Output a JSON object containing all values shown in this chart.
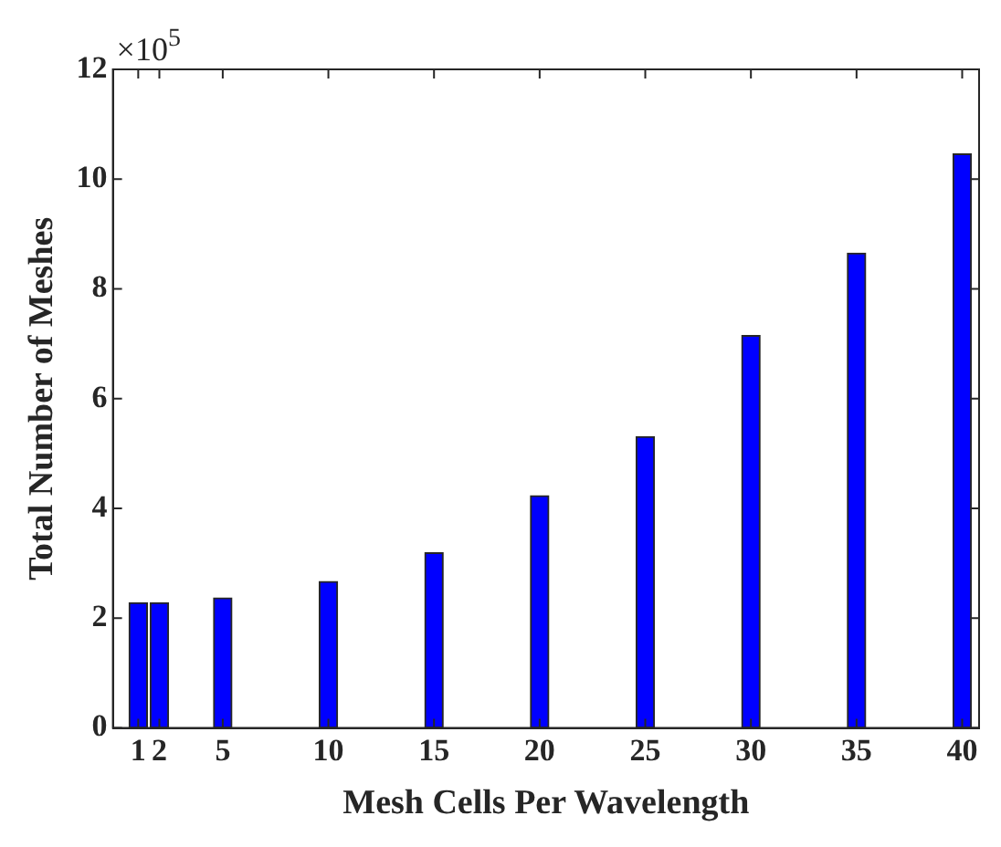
{
  "chart_data": {
    "type": "bar",
    "xlabel": "Mesh Cells Per Wavelength",
    "ylabel": "Total Number of Meshes",
    "annotations": [
      "×10$^{5}$"
    ],
    "x": [
      1,
      2,
      5,
      10,
      15,
      20,
      25,
      30,
      35,
      40
    ],
    "values": [
      2.28,
      2.28,
      2.37,
      2.67,
      3.19,
      4.23,
      5.31,
      7.15,
      8.65,
      10.46
    ],
    "color": "#0000ff",
    "xlim": [
      -0.2,
      40.8
    ],
    "xticks": [
      1,
      2,
      5,
      10,
      15,
      20,
      25,
      30,
      35,
      40
    ],
    "ylim": [
      0,
      12
    ],
    "yticks": [
      0,
      2,
      4,
      6,
      8,
      10,
      12
    ],
    "grid": false,
    "legend": false
  }
}
